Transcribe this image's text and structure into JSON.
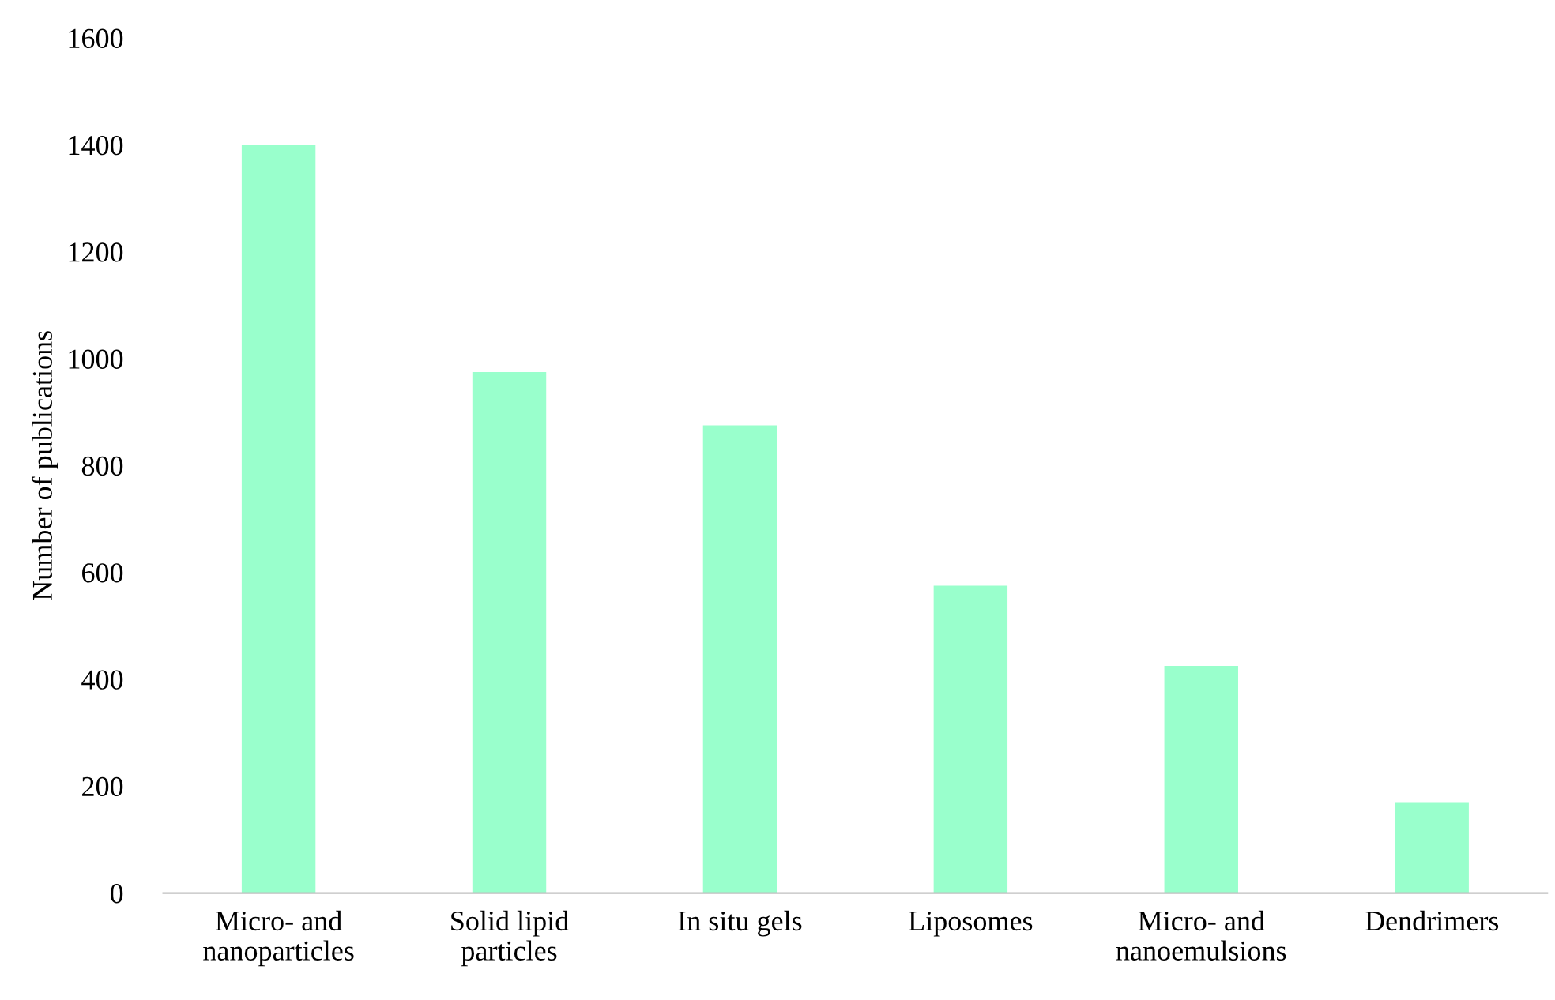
{
  "chart_data": {
    "type": "bar",
    "ylabel": "Number of publications",
    "categories": [
      "Micro- and\nnanoparticles",
      "Solid lipid\nparticles",
      "In situ gels",
      "Liposomes",
      "Micro- and\nnanoemulsions",
      "Dendrimers"
    ],
    "values": [
      1400,
      975,
      875,
      575,
      425,
      170
    ],
    "color": "#99ffcc",
    "ylim": [
      0,
      1600
    ],
    "yticks": [
      0,
      200,
      400,
      600,
      800,
      1000,
      1200,
      1400,
      1600
    ],
    "grid": false
  }
}
